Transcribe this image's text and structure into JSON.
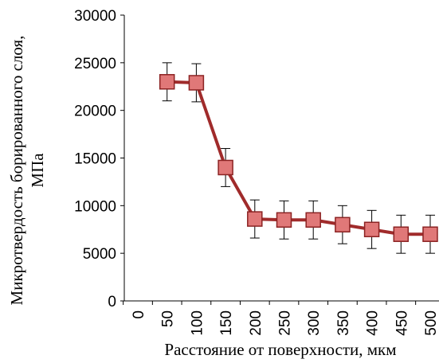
{
  "chart_data": {
    "type": "line",
    "x": [
      50,
      100,
      150,
      200,
      250,
      300,
      350,
      400,
      450,
      500
    ],
    "x_ticks": [
      "0",
      "50",
      "100",
      "150",
      "200",
      "250",
      "300",
      "350",
      "400",
      "450",
      "500"
    ],
    "series": [
      {
        "values": [
          23000,
          22900,
          14000,
          8600,
          8500,
          8500,
          8000,
          7500,
          7000,
          7000
        ],
        "error": [
          2000,
          2000,
          2000,
          2000,
          2000,
          2000,
          2000,
          2000,
          2000,
          2000
        ],
        "line_color": "#a02b2b",
        "marker_fill": "#e07878",
        "marker_edge": "#8c2323",
        "marker": "square"
      }
    ],
    "y_ticks": [
      "0",
      "5000",
      "10000",
      "15000",
      "20000",
      "25000",
      "30000"
    ],
    "ylim": [
      0,
      30000
    ],
    "xlabel": "Расстояние от поверхности, мкм",
    "ylabel_line1": "Микротвердость борированного слоя,",
    "ylabel_line2": "МПа",
    "grid": false
  }
}
